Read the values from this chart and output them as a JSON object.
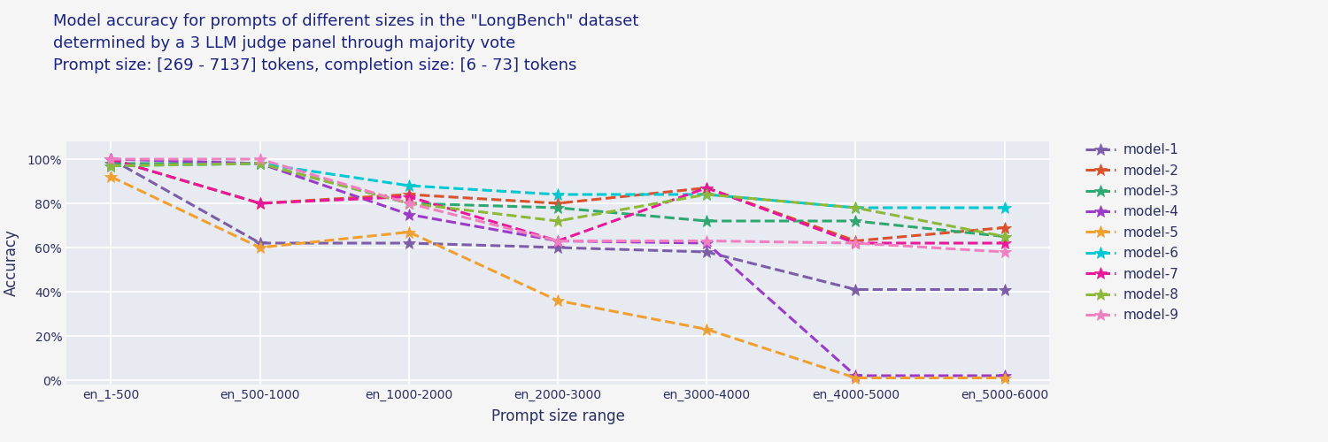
{
  "title_line1": "Model accuracy for prompts of different sizes in the \"LongBench\" dataset",
  "title_line2": "determined by a 3 LLM judge panel through majority vote",
  "title_line3": "Prompt size: [269 - 7137] tokens, completion size: [6 - 73] tokens",
  "xlabel": "Prompt size range",
  "ylabel": "Accuracy",
  "categories": [
    "en_1-500",
    "en_500-1000",
    "en_1000-2000",
    "en_2000-3000",
    "en_3000-4000",
    "en_4000-5000",
    "en_5000-6000"
  ],
  "plot_background_color": "#e8eaf2",
  "fig_background": "#f5f5f5",
  "models": {
    "model-1": {
      "color": "#7b5ea7",
      "values": [
        1.0,
        0.62,
        0.62,
        0.6,
        0.58,
        0.41,
        0.41
      ]
    },
    "model-2": {
      "color": "#d9522b",
      "values": [
        1.0,
        0.8,
        0.84,
        0.8,
        0.87,
        0.63,
        0.69
      ]
    },
    "model-3": {
      "color": "#2ea870",
      "values": [
        0.98,
        0.98,
        0.8,
        0.78,
        0.72,
        0.72,
        0.65
      ]
    },
    "model-4": {
      "color": "#9b3bc7",
      "values": [
        1.0,
        0.98,
        0.75,
        0.63,
        0.62,
        0.02,
        0.02
      ]
    },
    "model-5": {
      "color": "#f0a030",
      "values": [
        0.92,
        0.6,
        0.67,
        0.36,
        0.23,
        0.01,
        0.01
      ]
    },
    "model-6": {
      "color": "#00c8d0",
      "values": [
        0.97,
        0.98,
        0.88,
        0.84,
        0.84,
        0.78,
        0.78
      ]
    },
    "model-7": {
      "color": "#e8189a",
      "values": [
        1.0,
        0.8,
        0.83,
        0.63,
        0.87,
        0.62,
        0.62
      ]
    },
    "model-8": {
      "color": "#8db83a",
      "values": [
        0.97,
        0.98,
        0.8,
        0.72,
        0.84,
        0.78,
        0.65
      ]
    },
    "model-9": {
      "color": "#f080c0",
      "values": [
        1.0,
        1.0,
        0.8,
        0.63,
        0.63,
        0.62,
        0.58
      ]
    }
  },
  "ylim": [
    -0.02,
    1.08
  ],
  "yticks": [
    0.0,
    0.2,
    0.4,
    0.6,
    0.8,
    1.0
  ],
  "ytick_labels": [
    "0%",
    "20%",
    "40%",
    "60%",
    "80%",
    "100%"
  ],
  "title_color": "#1a237e",
  "label_color": "#2a3060",
  "tick_color": "#2a3060",
  "legend_fontsize": 11,
  "title_fontsize": 13,
  "axis_label_fontsize": 12,
  "tick_fontsize": 10,
  "linewidth": 2.2,
  "markersize": 10,
  "grid_color": "#ffffff",
  "grid_linewidth": 1.2
}
